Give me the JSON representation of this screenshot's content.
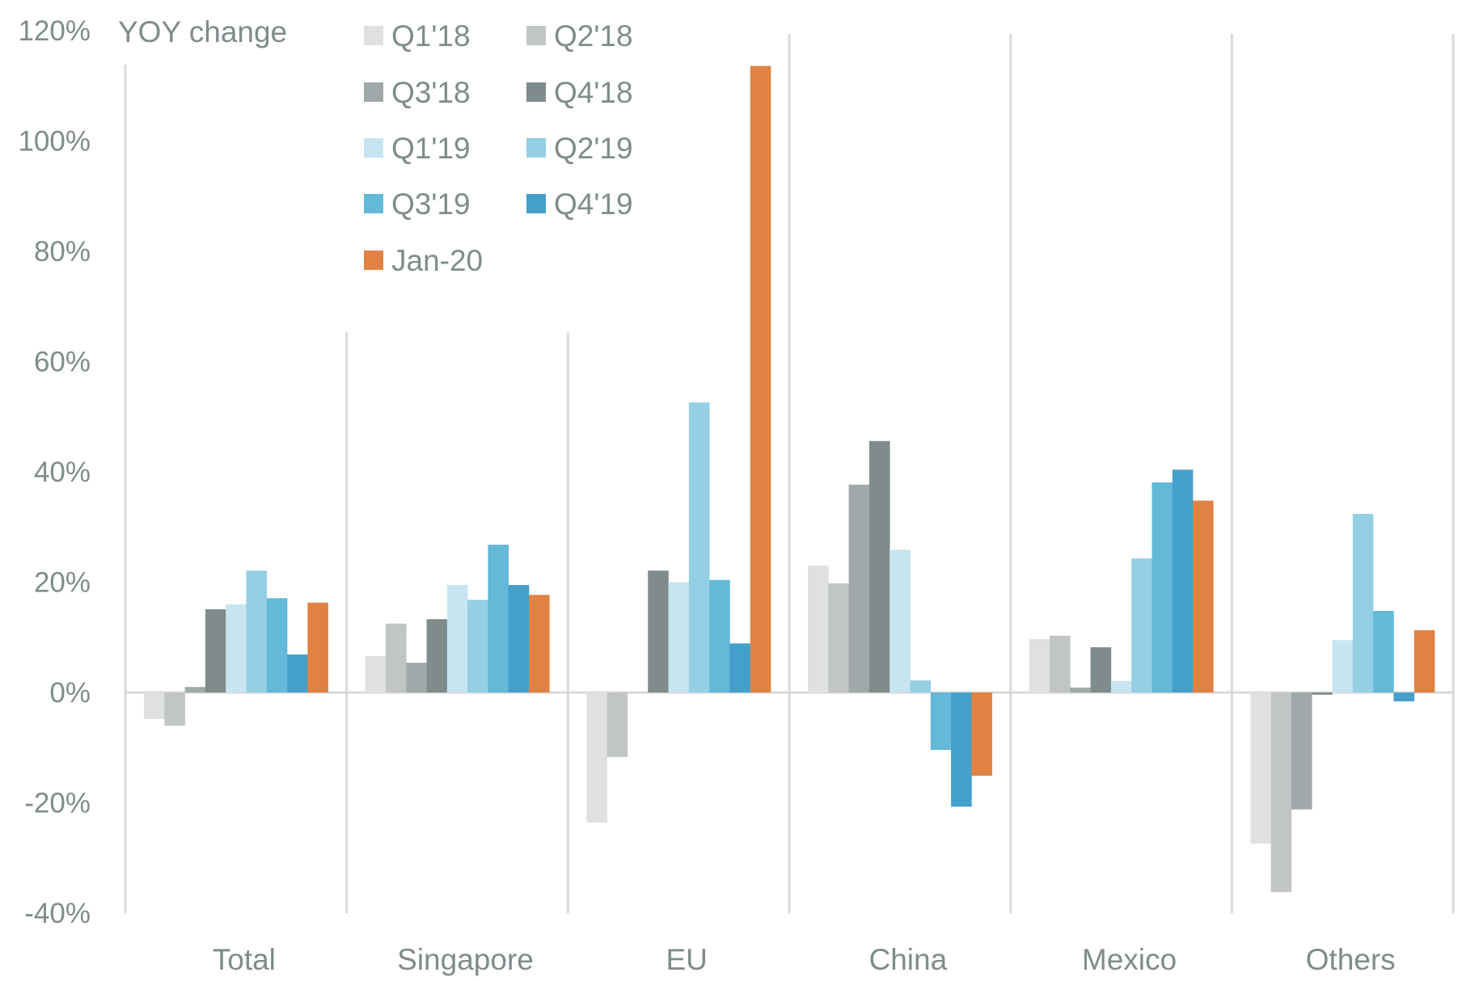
{
  "chart_data": {
    "type": "bar",
    "title": "YOY change",
    "xlabel": "",
    "ylabel": "YOY change",
    "ylim": [
      -40,
      120
    ],
    "yticks": [
      -40,
      -20,
      0,
      20,
      40,
      60,
      80,
      100,
      120
    ],
    "ytick_labels": [
      "-40%",
      "-20%",
      "0%",
      "20%",
      "40%",
      "60%",
      "80%",
      "100%",
      "120%"
    ],
    "grid": false,
    "legend_position": "top-center",
    "categories": [
      "Total",
      "Singapore",
      "EU",
      "China",
      "Mexico",
      "Others"
    ],
    "series": [
      {
        "name": "Q1'18",
        "color": "#DFE1E1",
        "values": [
          -4.8,
          6.6,
          -23.6,
          23.0,
          9.7,
          -27.4
        ]
      },
      {
        "name": "Q2'18",
        "color": "#C1C5C6",
        "values": [
          -6.0,
          12.5,
          -11.7,
          19.8,
          10.3,
          -36.2
        ]
      },
      {
        "name": "Q3'18",
        "color": "#A1A8A9",
        "values": [
          1.0,
          5.4,
          0.0,
          37.7,
          0.9,
          -21.2
        ]
      },
      {
        "name": "Q4'18",
        "color": "#808B8B",
        "values": [
          15.1,
          13.3,
          22.1,
          45.6,
          8.2,
          -0.4
        ]
      },
      {
        "name": "Q1'19",
        "color": "#C7E5F1",
        "values": [
          16.0,
          19.5,
          20.0,
          25.9,
          2.1,
          9.5
        ]
      },
      {
        "name": "Q2'19",
        "color": "#94CFE4",
        "values": [
          22.1,
          16.8,
          52.6,
          2.2,
          24.3,
          32.4
        ]
      },
      {
        "name": "Q3'19",
        "color": "#64B8D8",
        "values": [
          17.1,
          26.8,
          20.4,
          -10.4,
          38.1,
          14.8
        ]
      },
      {
        "name": "Q4'19",
        "color": "#459FCB",
        "values": [
          6.9,
          19.5,
          8.9,
          -20.7,
          40.4,
          -1.6
        ]
      },
      {
        "name": "Jan-20",
        "color": "#E08244",
        "values": [
          16.3,
          17.7,
          113.6,
          -15.1,
          34.8,
          11.3
        ]
      }
    ],
    "colors": {
      "text": "#808B8C",
      "axis": "#D9D9D9"
    }
  }
}
